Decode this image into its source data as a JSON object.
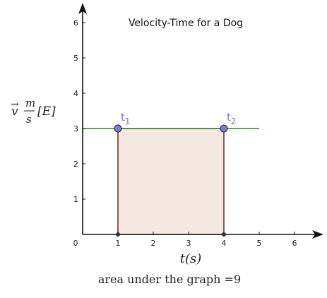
{
  "chart_data": {
    "type": "line",
    "title": "Velocity-Time for a Dog",
    "xlabel": "t(s)",
    "ylabel_vec": "v",
    "ylabel_num": "m",
    "ylabel_den": "s",
    "ylabel_dir": "[E]",
    "xlim": [
      0,
      6.8
    ],
    "ylim": [
      0,
      6.3
    ],
    "x_ticks": [
      "1",
      "2",
      "3",
      "4",
      "5",
      "6"
    ],
    "y_ticks": [
      "1",
      "2",
      "3",
      "4",
      "5",
      "6"
    ],
    "origin_label": "0",
    "series": [
      {
        "type": "line",
        "color": "#2e7d32",
        "points": [
          [
            0,
            3
          ],
          [
            5,
            3
          ]
        ]
      }
    ],
    "area": {
      "x_from": 1,
      "x_to": 4,
      "y": 3,
      "fill": "#f5e8e0",
      "stroke": "#7a3b22"
    },
    "points": [
      {
        "label": "t",
        "sub": "1",
        "x": 1,
        "y": 3
      },
      {
        "label": "t",
        "sub": "2",
        "x": 4,
        "y": 3
      }
    ],
    "caption": "area under the graph  =9"
  }
}
